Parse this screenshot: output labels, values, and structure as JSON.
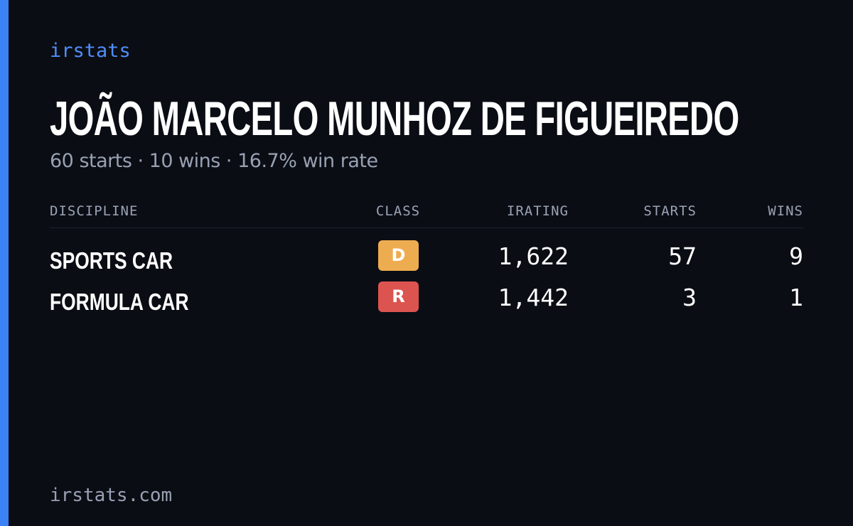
{
  "brand": "irstats",
  "driver": {
    "name": "JOÃO MARCELO MUNHOZ DE FIGUEIREDO",
    "summary": "60 starts · 10 wins · 16.7% win rate"
  },
  "table": {
    "headers": [
      "DISCIPLINE",
      "CLASS",
      "IRATING",
      "STARTS",
      "WINS"
    ],
    "rows": [
      {
        "discipline": "SPORTS CAR",
        "class": "D",
        "class_color": "#eeac50",
        "irating": "1,622",
        "starts": "57",
        "wins": "9"
      },
      {
        "discipline": "FORMULA CAR",
        "class": "R",
        "class_color": "#dc5450",
        "irating": "1,442",
        "starts": "3",
        "wins": "1"
      }
    ]
  },
  "footer": "irstats.com"
}
